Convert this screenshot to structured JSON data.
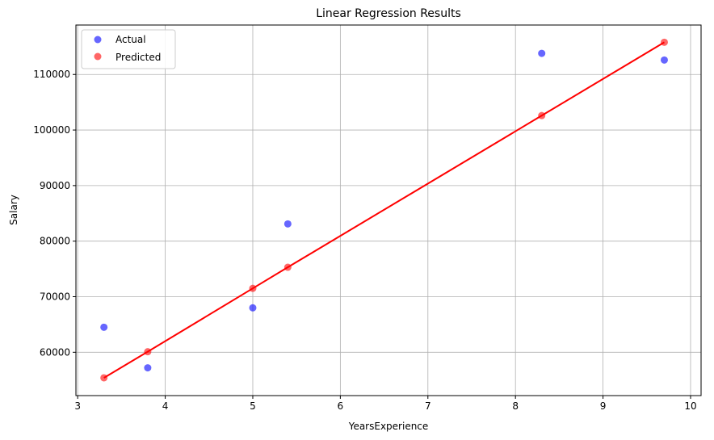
{
  "chart_data": {
    "type": "scatter",
    "title": "Linear Regression Results",
    "xlabel": "YearsExperience",
    "ylabel": "Salary",
    "xlim": [
      2.98,
      10.12
    ],
    "ylim": [
      52200,
      118900
    ],
    "x_ticks": [
      3,
      4,
      5,
      6,
      7,
      8,
      9,
      10
    ],
    "x_tick_labels": [
      "3",
      "4",
      "5",
      "6",
      "7",
      "8",
      "9",
      "10"
    ],
    "y_ticks": [
      60000,
      70000,
      80000,
      90000,
      100000,
      110000
    ],
    "y_tick_labels": [
      "60000",
      "70000",
      "80000",
      "90000",
      "100000",
      "110000"
    ],
    "grid": true,
    "legend_position": "top-left",
    "series": [
      {
        "name": "Actual",
        "kind": "scatter",
        "color": "#0000ff",
        "x": [
          3.3,
          3.8,
          5.0,
          5.4,
          8.3,
          9.7
        ],
        "y": [
          64500,
          57200,
          68000,
          83100,
          113800,
          112600
        ]
      },
      {
        "name": "Predicted",
        "kind": "scatter+line",
        "color": "#ff0000",
        "x": [
          3.3,
          3.8,
          5.0,
          5.4,
          8.3,
          9.7
        ],
        "y": [
          55400,
          60100,
          71500,
          75300,
          102600,
          115800
        ]
      }
    ]
  }
}
